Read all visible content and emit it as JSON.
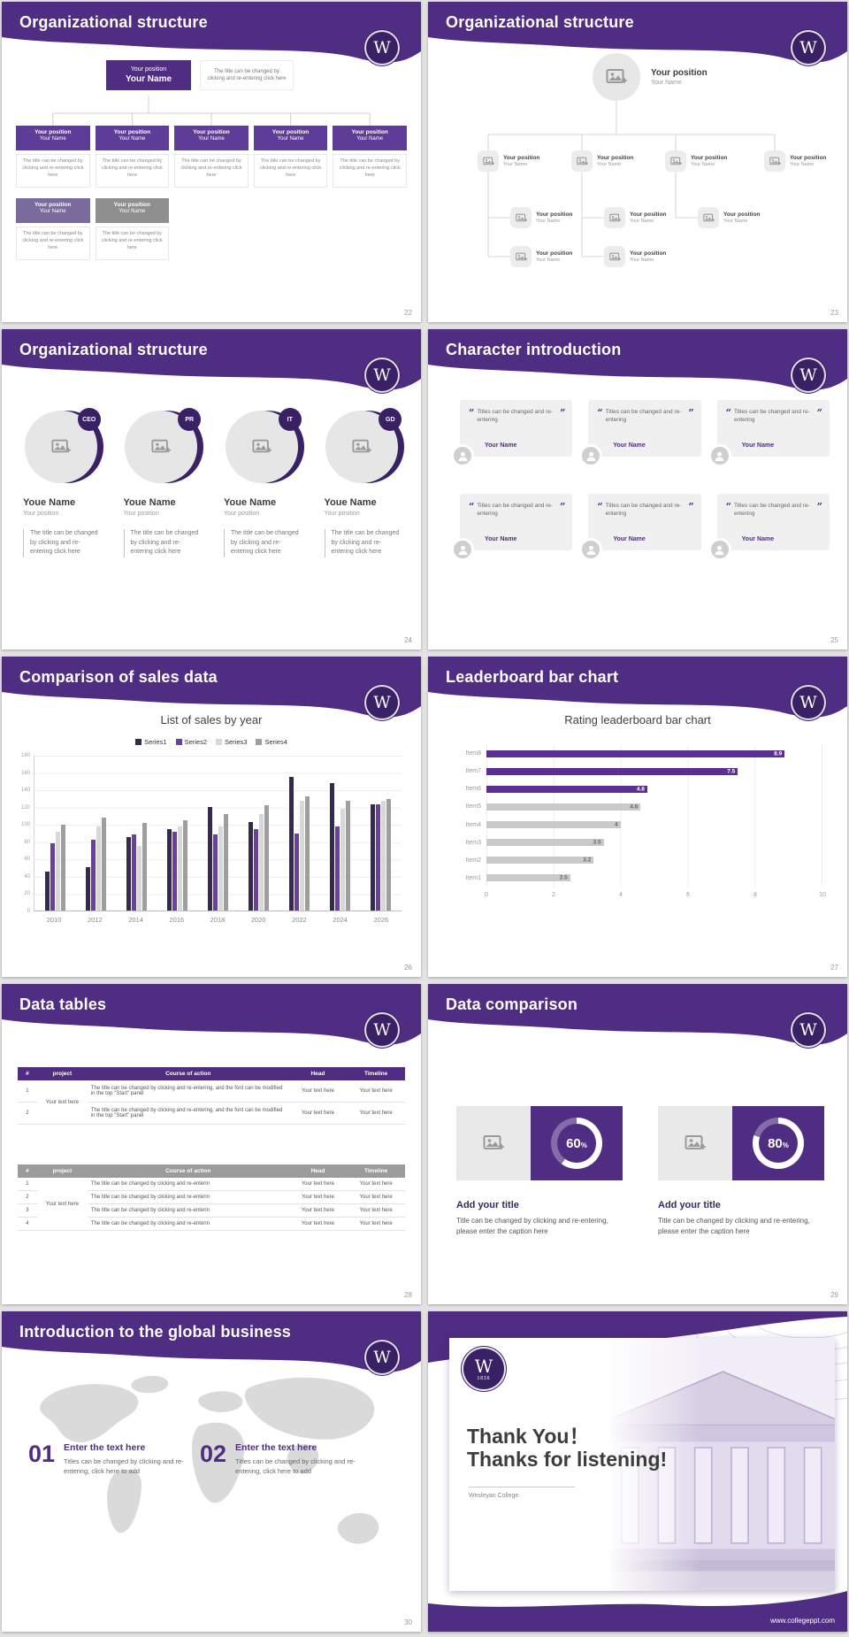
{
  "page": {
    "background": "#e3e3e3"
  },
  "theme": {
    "logo_letter": "W",
    "purple": "#4f2d82",
    "purple_dark": "#3a2166",
    "purple_mid": "#5e3d99",
    "muted_purple": "#7b6b9d",
    "gray": "#8f8f8f"
  },
  "slides": {
    "org_boxes": {
      "title": "Organizational structure",
      "page_number": "22",
      "root": {
        "position": "Your position",
        "name": "Your Name"
      },
      "root_desc": "The title can be changed by clicking and re-entering click here",
      "desc": "The title can be changed by clicking and re-entering click here",
      "level1": [
        {
          "position": "Your position",
          "name": "Your Name"
        },
        {
          "position": "Your position",
          "name": "Your Name"
        },
        {
          "position": "Your position",
          "name": "Your Name"
        },
        {
          "position": "Your position",
          "name": "Your Name"
        },
        {
          "position": "Your position",
          "name": "Your Name"
        }
      ],
      "level2": [
        {
          "position": "Your position",
          "name": "Your Name",
          "variant": "muted"
        },
        {
          "position": "Your position",
          "name": "Your Name",
          "variant": "gray"
        }
      ]
    },
    "org_circles": {
      "title": "Organizational structure",
      "page_number": "23",
      "root": {
        "position": "Your position",
        "name": "Your Name"
      },
      "row1": [
        {
          "position": "Your position",
          "name": "Your Name"
        },
        {
          "position": "Your position",
          "name": "Your Name"
        },
        {
          "position": "Your position",
          "name": "Your Name"
        },
        {
          "position": "Your position",
          "name": "Your Name"
        }
      ],
      "row2": [
        {
          "position": "Your position",
          "name": "Your Name"
        },
        {
          "position": "Your position",
          "name": "Your Name"
        },
        {
          "position": "Your position",
          "name": "Your Name"
        }
      ],
      "row3": [
        {
          "position": "Your position",
          "name": "Your Name"
        },
        {
          "position": "Your position",
          "name": "Your Name"
        }
      ]
    },
    "org_people": {
      "title": "Organizational structure",
      "page_number": "24",
      "people": [
        {
          "badge": "CEO",
          "name": "Youe Name",
          "position": "Your position",
          "desc": "The title can be changed by clicking and re-entering click here"
        },
        {
          "badge": "PR",
          "name": "Youe Name",
          "position": "Your position",
          "desc": "The title can be changed by clicking and re-entering click here"
        },
        {
          "badge": "IT",
          "name": "Youe Name",
          "position": "Your position",
          "desc": "The title can be changed by clicking and re-entering click here"
        },
        {
          "badge": "GD",
          "name": "Youe Name",
          "position": "Your position",
          "desc": "The title can be changed by clicking and re-entering click here"
        }
      ]
    },
    "characters": {
      "title": "Character introduction",
      "page_number": "25",
      "cards": [
        {
          "quote": "Titles can be changed and re-entering",
          "name": "Your Name"
        },
        {
          "quote": "Titles can be changed and re-entering",
          "name": "Your Name"
        },
        {
          "quote": "Titles can be changed and re-entering",
          "name": "Your Name"
        },
        {
          "quote": "Titles can be changed and re-entering",
          "name": "Your Name"
        },
        {
          "quote": "Titles can be changed and re-entering",
          "name": "Your Name"
        },
        {
          "quote": "Titles can be changed and re-entering",
          "name": "Your Name"
        }
      ]
    },
    "sales": {
      "title": "Comparison of sales data",
      "page_number": "26",
      "chart_data": {
        "type": "bar",
        "title": "List of sales by year",
        "categories": [
          "2010",
          "2012",
          "2014",
          "2016",
          "2018",
          "2020",
          "2022",
          "2024",
          "2026"
        ],
        "series": [
          {
            "name": "Series1",
            "color": "#35294f",
            "values": [
              45,
              50,
              85,
              95,
              120,
              103,
              155,
              148,
              123
            ]
          },
          {
            "name": "Series2",
            "color": "#6d3e9e",
            "values": [
              78,
              82,
              88,
              92,
              88,
              95,
              90,
              98,
              123
            ]
          },
          {
            "name": "Series3",
            "color": "#d8d8d8",
            "values": [
              92,
              98,
              75,
              98,
              98,
              112,
              128,
              118,
              128
            ]
          },
          {
            "name": "Series4",
            "color": "#9e9e9e",
            "values": [
              100,
              108,
              102,
              105,
              112,
              122,
              133,
              128,
              130
            ]
          }
        ],
        "ylim": [
          0,
          180
        ],
        "yticks": [
          0,
          20,
          40,
          60,
          80,
          100,
          120,
          140,
          160,
          180
        ],
        "legend_position": "top",
        "grid": true
      }
    },
    "leaderboard": {
      "title": "Leaderboard bar chart",
      "page_number": "27",
      "chart_data": {
        "type": "bar-horizontal",
        "title": "Rating leaderboard bar chart",
        "categories": [
          "Item8",
          "Item7",
          "Item6",
          "Item5",
          "Item4",
          "Item3",
          "Item2",
          "Item1"
        ],
        "values": [
          8.9,
          7.5,
          4.8,
          4.6,
          4,
          3.5,
          3.2,
          2.5
        ],
        "purple_count": 3,
        "purple_color": "#5b2f91",
        "gray_color": "#c9c9c9",
        "xlim": [
          0,
          10
        ],
        "xticks": [
          0,
          2,
          4,
          6,
          8,
          10
        ],
        "grid": true
      }
    },
    "tables": {
      "title": "Data tables",
      "page_number": "28",
      "table1": {
        "headers": [
          "#",
          "project",
          "Course of action",
          "Head",
          "Timeline"
        ],
        "project": "Your text here",
        "rows": [
          {
            "num": "1",
            "course": "The title can be changed by clicking and re-entering, and the font can be modified in the top \"Start\" panel",
            "head": "Your text here",
            "timeline": "Your text here"
          },
          {
            "num": "2",
            "course": "The title can be changed by clicking and re-entering, and the font can be modified in the top \"Start\" panel",
            "head": "Your text here",
            "timeline": "Your text here"
          }
        ]
      },
      "table2": {
        "headers": [
          "#",
          "project",
          "Course of action",
          "Head",
          "Timeline"
        ],
        "project": "Your text here",
        "rows": [
          {
            "num": "1",
            "course": "The title can be changed by clicking and re-enterin",
            "head": "Your text here",
            "timeline": "Your text here"
          },
          {
            "num": "2",
            "course": "The title can be changed by clicking and re-enterin",
            "head": "Your text here",
            "timeline": "Your text here"
          },
          {
            "num": "3",
            "course": "The title can be changed by clicking and re-enterin",
            "head": "Your text here",
            "timeline": "Your text here"
          },
          {
            "num": "4",
            "course": "The title can be changed by clicking and re-enterin",
            "head": "Your text here",
            "timeline": "Your text here"
          }
        ]
      }
    },
    "comparison": {
      "title": "Data comparison",
      "page_number": "29",
      "items": [
        {
          "value": 60,
          "unit": "%",
          "title": "Add your title",
          "desc": "Title can be changed by clicking and re-entering, please enter the caption here"
        },
        {
          "value": 80,
          "unit": "%",
          "title": "Add your title",
          "desc": "Title can be changed by clicking and re-entering, please enter the caption here"
        }
      ]
    },
    "global": {
      "title": "Introduction to the global business",
      "page_number": "30",
      "items": [
        {
          "num": "01",
          "title": "Enter the text here",
          "desc": "Titles can be changed by clicking and re-entering, click here to add"
        },
        {
          "num": "02",
          "title": "Enter the text here",
          "desc": "Titles can be changed by clicking and re-entering, click here to add"
        }
      ]
    },
    "thanks": {
      "line1": "Thank You！",
      "line2": "Thanks for listening!",
      "org": "Wesleyan College",
      "url": "www.collegeppt.com",
      "logo_year": "1836"
    }
  }
}
